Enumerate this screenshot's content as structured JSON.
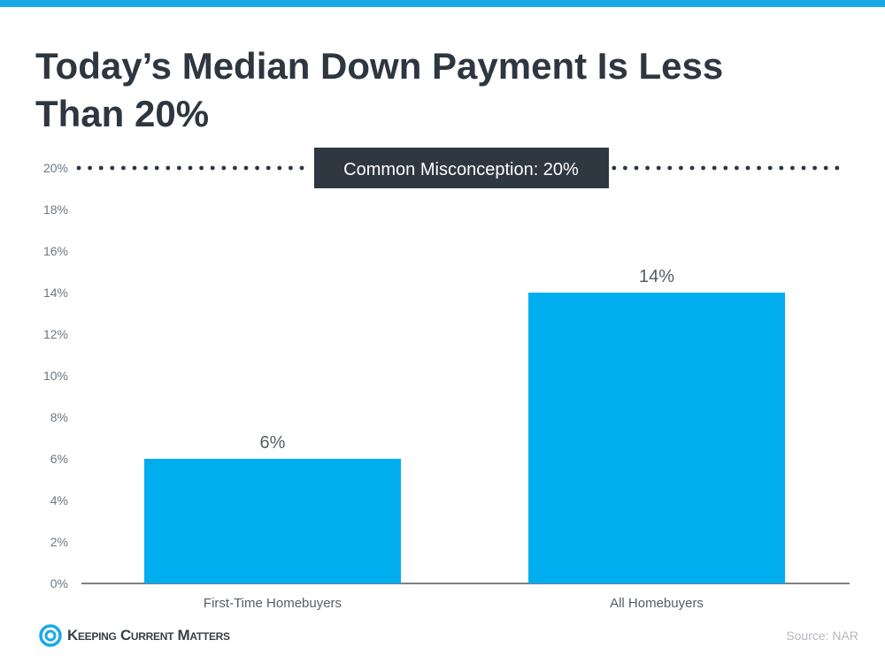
{
  "title": "Today’s Median Down Payment Is Less Than 20%",
  "chart_data": {
    "type": "bar",
    "categories": [
      "First-Time Homebuyers",
      "All Homebuyers"
    ],
    "values": [
      6,
      14
    ],
    "data_labels": [
      "6%",
      "14%"
    ],
    "ylim": [
      0,
      20
    ],
    "yticks": [
      "0%",
      "2%",
      "4%",
      "6%",
      "8%",
      "10%",
      "12%",
      "14%",
      "16%",
      "18%",
      "20%"
    ],
    "grid": false,
    "reference_line": {
      "value": 20,
      "label": "Common Misconception: 20%",
      "style": "dotted"
    },
    "bar_color": "#00aeef"
  },
  "footer": {
    "brand": "Keeping Current Matters",
    "source": "Source: NAR"
  }
}
